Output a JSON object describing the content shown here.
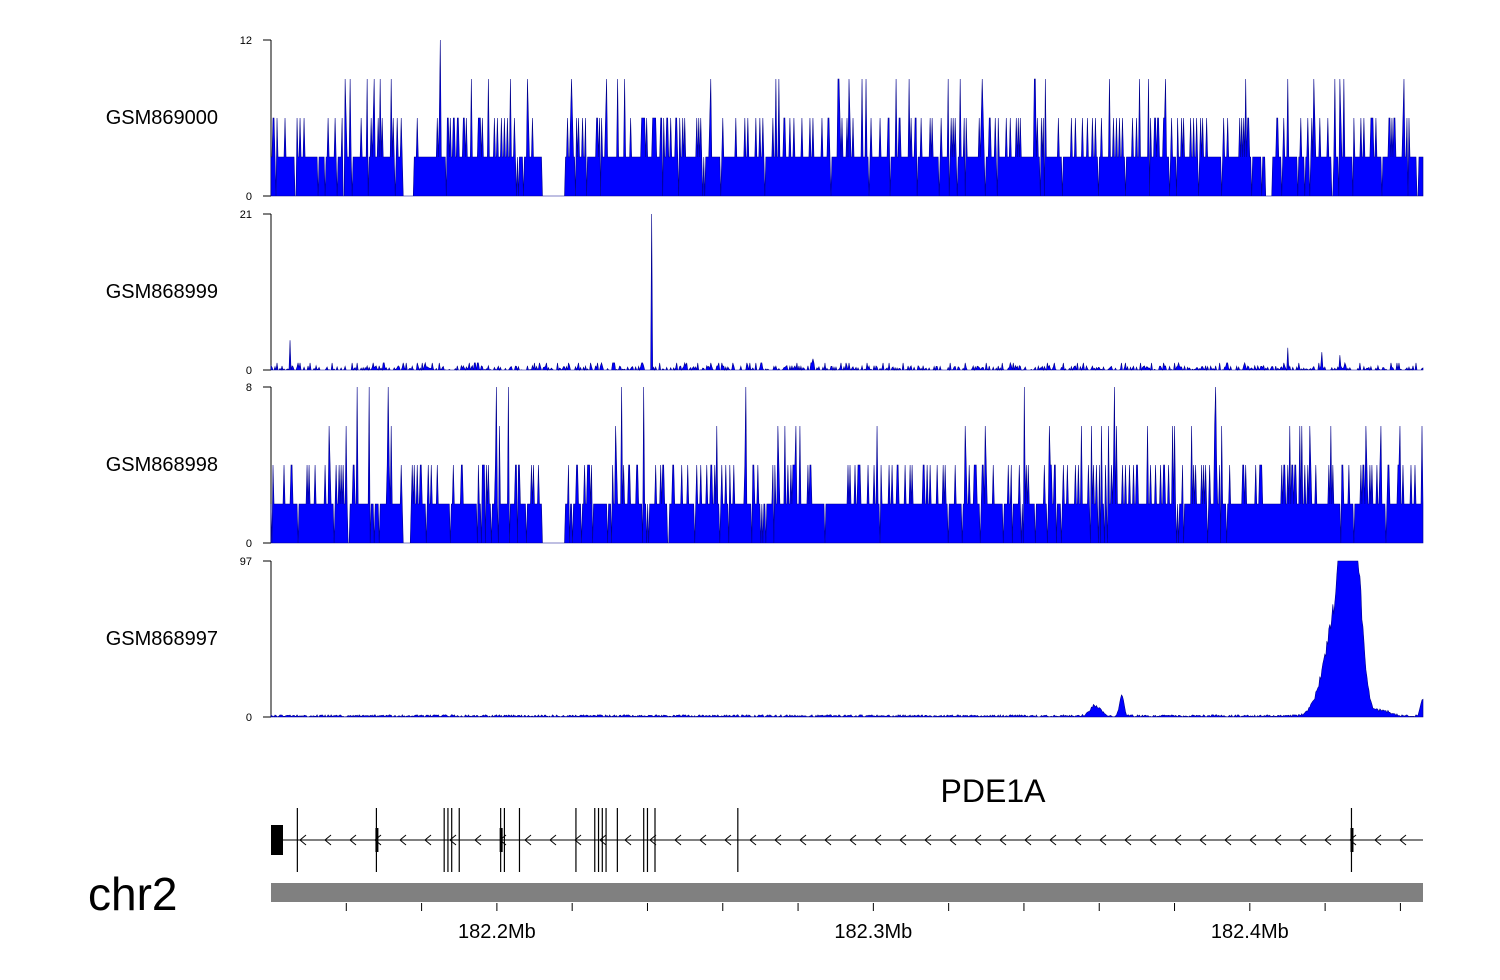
{
  "chart_data": {
    "type": "area",
    "chromosome": "chr2",
    "genome_x_range_mb": [
      182.14,
      182.446
    ],
    "tracks": [
      {
        "name": "GSM869000",
        "ylim": [
          0,
          12
        ],
        "tick_labels": [
          "12",
          "0"
        ],
        "pattern": "dense_binary",
        "base_level": 3,
        "spike_levels": [
          6,
          9,
          12
        ],
        "gaps_mb": [
          [
            182.175,
            182.178
          ],
          [
            182.212,
            182.218
          ],
          [
            182.404,
            182.406
          ]
        ],
        "spikes_mb": [
          [
            182.185,
            12
          ],
          [
            182.169,
            9
          ],
          [
            182.172,
            9
          ],
          [
            182.208,
            9
          ],
          [
            182.32,
            9
          ],
          [
            182.373,
            9
          ],
          [
            182.41,
            9
          ],
          [
            182.425,
            9
          ],
          [
            182.291,
            9
          ],
          [
            182.306,
            9
          ],
          [
            182.274,
            9
          ],
          [
            182.297,
            9
          ],
          [
            182.417,
            9
          ]
        ]
      },
      {
        "name": "GSM868999",
        "ylim": [
          0,
          21
        ],
        "tick_labels": [
          "21",
          "0"
        ],
        "pattern": "low_noise",
        "base_level": 0.6,
        "spikes_mb": [
          [
            182.241,
            21
          ],
          [
            182.145,
            4
          ],
          [
            182.284,
            1.5
          ],
          [
            182.41,
            3
          ],
          [
            182.419,
            2.4
          ],
          [
            182.424,
            2
          ]
        ]
      },
      {
        "name": "GSM868998",
        "ylim": [
          0,
          8
        ],
        "tick_labels": [
          "8",
          "0"
        ],
        "pattern": "dense_binary",
        "base_level": 2,
        "spike_levels": [
          4,
          6,
          8
        ],
        "gaps_mb": [
          [
            182.175,
            182.177
          ],
          [
            182.212,
            182.218
          ]
        ],
        "spikes_mb": [
          [
            182.163,
            8
          ],
          [
            182.166,
            8
          ],
          [
            182.171,
            8
          ],
          [
            182.2,
            8
          ],
          [
            182.203,
            8
          ],
          [
            182.233,
            8
          ],
          [
            182.239,
            8
          ],
          [
            182.266,
            8
          ],
          [
            182.34,
            8
          ],
          [
            182.364,
            8
          ],
          [
            182.391,
            8
          ]
        ]
      },
      {
        "name": "GSM868997",
        "ylim": [
          0,
          97
        ],
        "tick_labels": [
          "97",
          "0"
        ],
        "pattern": "peaks",
        "base_level": 1,
        "peaks_mb": [
          {
            "center": 182.4255,
            "height": 86,
            "width": 0.0035
          },
          {
            "center": 182.4275,
            "height": 95,
            "width": 0.0028
          },
          {
            "center": 182.4215,
            "height": 40,
            "width": 0.004
          },
          {
            "center": 182.359,
            "height": 7,
            "width": 0.002
          },
          {
            "center": 182.366,
            "height": 14,
            "width": 0.0008
          },
          {
            "center": 182.446,
            "height": 14,
            "width": 0.0008
          },
          {
            "center": 182.435,
            "height": 4,
            "width": 0.003
          }
        ]
      }
    ],
    "gene": {
      "name": "PDE1A",
      "strand": "-",
      "start_mb": 182.14,
      "end_mb": 182.446,
      "exons_mb": [
        182.14,
        182.147,
        182.168,
        182.186,
        182.187,
        182.188,
        182.19,
        182.201,
        182.202,
        182.206,
        182.221,
        182.226,
        182.227,
        182.228,
        182.229,
        182.232,
        182.239,
        182.24,
        182.242,
        182.264,
        182.427
      ],
      "first_exon_block_mb": [
        182.14,
        182.143
      ],
      "tall_exons_mb": [
        182.147,
        182.168,
        182.186,
        182.187,
        182.188,
        182.19,
        182.201,
        182.202,
        182.206,
        182.221,
        182.226,
        182.227,
        182.228,
        182.229,
        182.232,
        182.239,
        182.24,
        182.242,
        182.264,
        182.427
      ]
    },
    "genome_axis": {
      "labeled_ticks_mb": [
        182.2,
        182.3,
        182.4
      ],
      "tick_labels": [
        "182.2Mb",
        "182.3Mb",
        "182.4Mb"
      ],
      "minor_ticks_mb": [
        182.16,
        182.18,
        182.2,
        182.22,
        182.24,
        182.26,
        182.28,
        182.3,
        182.32,
        182.34,
        182.36,
        182.38,
        182.4,
        182.42,
        182.44
      ]
    },
    "colors": {
      "signal_fill": "#0000ff",
      "signal_stroke": "#00008b",
      "gene": "#000000",
      "ideogram_bar": "#808080"
    }
  }
}
